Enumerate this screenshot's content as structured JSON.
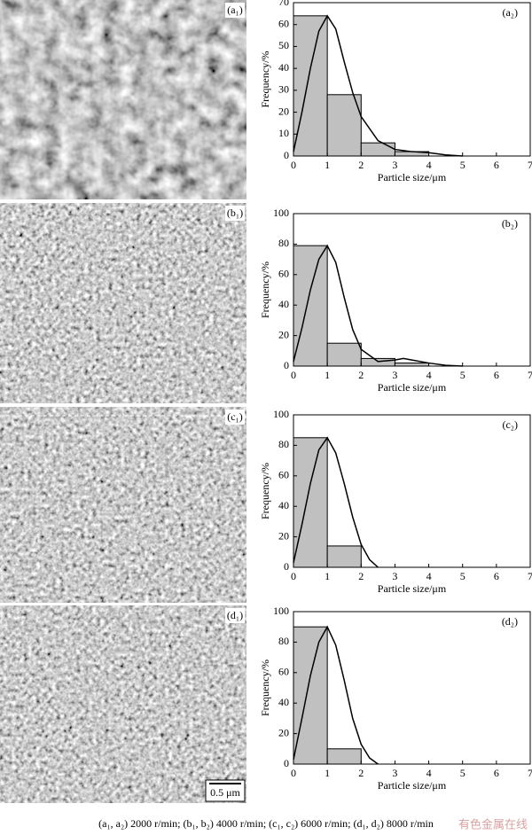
{
  "chart_data": [
    {
      "type": "histogram",
      "label": "(a₂)",
      "xlabel": "Particle size/μm",
      "ylabel": "Frequency/%",
      "bins": [
        0,
        1,
        2,
        3,
        4
      ],
      "values": [
        64,
        28,
        6,
        2
      ],
      "color": "#c0c0c0",
      "fit": {
        "x": [
          0,
          0.25,
          0.5,
          0.75,
          1,
          1.25,
          1.5,
          1.75,
          2,
          2.5,
          3,
          3.5,
          4,
          4.5,
          5
        ],
        "y": [
          2,
          20,
          40,
          57,
          64,
          58,
          43,
          29,
          18,
          7,
          3,
          2,
          1.5,
          0.5,
          0
        ]
      },
      "xlim": [
        0,
        7
      ],
      "xticks": [
        0,
        1,
        2,
        3,
        4,
        5,
        6,
        7
      ],
      "ylim": [
        0,
        70
      ],
      "yticks": [
        0,
        10,
        20,
        30,
        40,
        50,
        60,
        70
      ]
    },
    {
      "type": "histogram",
      "label": "(b₂)",
      "xlabel": "Particle size/μm",
      "ylabel": "Frequency/%",
      "bins": [
        0,
        1,
        2,
        3,
        4
      ],
      "values": [
        79,
        15,
        5,
        2
      ],
      "color": "#c0c0c0",
      "fit": {
        "x": [
          0,
          0.25,
          0.5,
          0.75,
          1,
          1.25,
          1.5,
          1.75,
          2,
          2.5,
          3,
          3.25,
          3.5,
          4,
          4.5,
          5
        ],
        "y": [
          3,
          25,
          50,
          70,
          79,
          68,
          45,
          24,
          11,
          3,
          4,
          5,
          4,
          2,
          0.5,
          0
        ]
      },
      "xlim": [
        0,
        7
      ],
      "xticks": [
        0,
        1,
        2,
        3,
        4,
        5,
        6,
        7
      ],
      "ylim": [
        0,
        100
      ],
      "yticks": [
        0,
        20,
        40,
        60,
        80,
        100
      ]
    },
    {
      "type": "histogram",
      "label": "(c₂)",
      "xlabel": "Particle size/μm",
      "ylabel": "Frequency/%",
      "bins": [
        0,
        1,
        2
      ],
      "values": [
        85,
        14
      ],
      "color": "#c0c0c0",
      "fit": {
        "x": [
          0,
          0.25,
          0.5,
          0.75,
          1,
          1.25,
          1.5,
          1.75,
          2,
          2.25,
          2.5
        ],
        "y": [
          3,
          28,
          55,
          77,
          85,
          75,
          55,
          33,
          15,
          5,
          0
        ]
      },
      "xlim": [
        0,
        7
      ],
      "xticks": [
        0,
        1,
        2,
        3,
        4,
        5,
        6,
        7
      ],
      "ylim": [
        0,
        100
      ],
      "yticks": [
        0,
        20,
        40,
        60,
        80,
        100
      ]
    },
    {
      "type": "histogram",
      "label": "(d₂)",
      "xlabel": "Particle size/μm",
      "ylabel": "Frequency/%",
      "bins": [
        0,
        1,
        2
      ],
      "values": [
        90,
        10
      ],
      "color": "#c0c0c0",
      "fit": {
        "x": [
          0,
          0.25,
          0.5,
          0.75,
          1,
          1.25,
          1.5,
          1.75,
          2,
          2.25,
          2.5
        ],
        "y": [
          3,
          30,
          58,
          80,
          90,
          78,
          55,
          30,
          13,
          4,
          0
        ]
      },
      "xlim": [
        0,
        7
      ],
      "xticks": [
        0,
        1,
        2,
        3,
        4,
        5,
        6,
        7
      ],
      "ylim": [
        0,
        100
      ],
      "yticks": [
        0,
        20,
        40,
        60,
        80,
        100
      ]
    }
  ],
  "images": [
    {
      "label": "(a₁)"
    },
    {
      "label": "(b₁)"
    },
    {
      "label": "(c₁)"
    },
    {
      "label": "(d₁)"
    }
  ],
  "scale_bar": "0.5 μm",
  "caption": "(a₁, a₂) 2000 r/min; (b₁, b₂) 4000 r/min; (c₁, c₂) 6000 r/min; (d₁, d₂) 8000 r/min",
  "watermark": "有色金属在线"
}
